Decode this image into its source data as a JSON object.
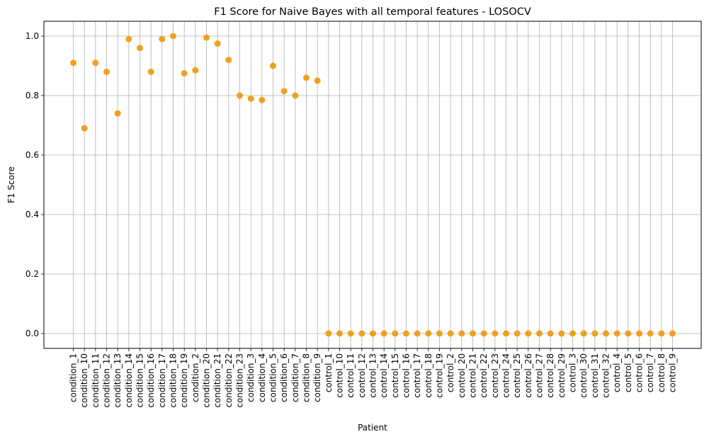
{
  "chart_data": {
    "type": "scatter",
    "title": "F1 Score for Naive Bayes with all temporal features - LOSOCV",
    "xlabel": "Patient",
    "ylabel": "F1 Score",
    "ylim": [
      -0.05,
      1.05
    ],
    "yticks": [
      "0.0",
      "0.2",
      "0.4",
      "0.6",
      "0.8",
      "1.0"
    ],
    "grid": true,
    "marker_color": "#f0a020",
    "series": [
      {
        "x": [
          "condition_1",
          "condition_10",
          "condition_11",
          "condition_12",
          "condition_13",
          "condition_14",
          "condition_15",
          "condition_16",
          "condition_17",
          "condition_18",
          "condition_19",
          "condition_2",
          "condition_20",
          "condition_21",
          "condition_22",
          "condition_23",
          "condition_3",
          "condition_4",
          "condition_5",
          "condition_6",
          "condition_7",
          "condition_8",
          "condition_9",
          "control_1",
          "control_10",
          "control_11",
          "control_12",
          "control_13",
          "control_14",
          "control_15",
          "control_16",
          "control_17",
          "control_18",
          "control_19",
          "control_2",
          "control_20",
          "control_21",
          "control_22",
          "control_23",
          "control_24",
          "control_25",
          "control_26",
          "control_27",
          "control_28",
          "control_29",
          "control_3",
          "control_30",
          "control_31",
          "control_32",
          "control_4",
          "control_5",
          "control_6",
          "control_7",
          "control_8",
          "control_9"
        ],
        "y": [
          0.91,
          0.69,
          0.91,
          0.88,
          0.74,
          0.99,
          0.96,
          0.88,
          0.99,
          1.0,
          0.875,
          0.885,
          0.995,
          0.975,
          0.92,
          0.8,
          0.79,
          0.785,
          0.9,
          0.815,
          0.8,
          0.86,
          0.85,
          0,
          0,
          0,
          0,
          0,
          0,
          0,
          0,
          0,
          0,
          0,
          0,
          0,
          0,
          0,
          0,
          0,
          0,
          0,
          0,
          0,
          0,
          0,
          0,
          0,
          0,
          0,
          0,
          0,
          0,
          0,
          0
        ]
      }
    ]
  }
}
